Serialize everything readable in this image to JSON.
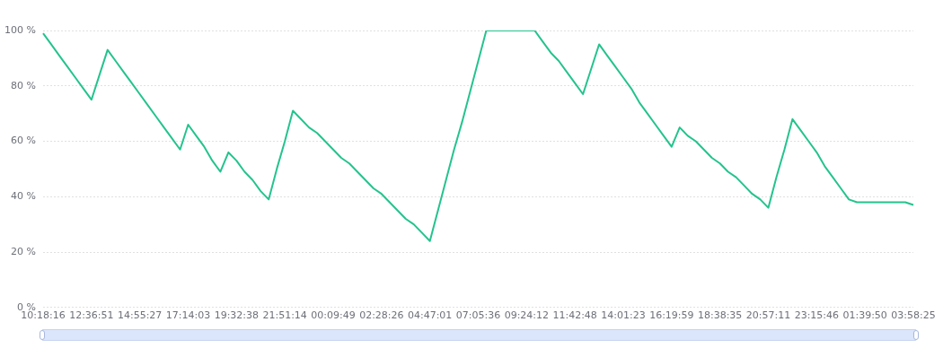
{
  "chart_data": {
    "type": "line",
    "categories": [
      "10:18:16",
      null,
      null,
      null,
      null,
      null,
      "12:36:51",
      null,
      null,
      null,
      null,
      null,
      "14:55:27",
      null,
      null,
      null,
      null,
      null,
      "17:14:03",
      null,
      null,
      null,
      null,
      null,
      "19:32:38",
      null,
      null,
      null,
      null,
      null,
      "21:51:14",
      null,
      null,
      null,
      null,
      null,
      "00:09:49",
      null,
      null,
      null,
      null,
      null,
      "02:28:26",
      null,
      null,
      null,
      null,
      null,
      "04:47:01",
      null,
      null,
      null,
      null,
      null,
      "07:05:36",
      null,
      null,
      null,
      null,
      null,
      "09:24:12",
      null,
      null,
      null,
      null,
      null,
      "11:42:48",
      null,
      null,
      null,
      null,
      null,
      "14:01:23",
      null,
      null,
      null,
      null,
      null,
      "16:19:59",
      null,
      null,
      null,
      null,
      null,
      "18:38:35",
      null,
      null,
      null,
      null,
      null,
      "20:57:11",
      null,
      null,
      null,
      null,
      null,
      "23:15:46",
      null,
      null,
      null,
      null,
      null,
      "01:39:50",
      null,
      null,
      null,
      null,
      null,
      "03:58:25"
    ],
    "series": [
      {
        "color": "#24c38e",
        "values": [
          99,
          95,
          91,
          87,
          83,
          79,
          75,
          84,
          93,
          89,
          85,
          81,
          77,
          73,
          69,
          65,
          61,
          57,
          66,
          62,
          58,
          53,
          49,
          56,
          53,
          49,
          46,
          42,
          39,
          50,
          60,
          71,
          68,
          65,
          63,
          60,
          57,
          54,
          52,
          49,
          46,
          43,
          41,
          38,
          35,
          32,
          30,
          27,
          24,
          35,
          46,
          57,
          67,
          78,
          89,
          100,
          100,
          100,
          100,
          100,
          100,
          100,
          96,
          92,
          89,
          85,
          81,
          77,
          86,
          95,
          91,
          87,
          83,
          79,
          74,
          70,
          66,
          62,
          58,
          65,
          62,
          60,
          57,
          54,
          52,
          49,
          47,
          44,
          41,
          39,
          36,
          47,
          57,
          68,
          64,
          60,
          56,
          51,
          47,
          43,
          39,
          38,
          38,
          38,
          38,
          38,
          38,
          38,
          37
        ]
      }
    ],
    "ylim": [
      0,
      100
    ],
    "yticks": [
      {
        "value": 0,
        "label": "0 %"
      },
      {
        "value": 20,
        "label": "20 %"
      },
      {
        "value": 40,
        "label": "40 %"
      },
      {
        "value": 60,
        "label": "60 %"
      },
      {
        "value": 80,
        "label": "80 %"
      },
      {
        "value": 100,
        "label": "100 %"
      }
    ],
    "grid": "y",
    "marker": "none",
    "line_style": "solid"
  }
}
